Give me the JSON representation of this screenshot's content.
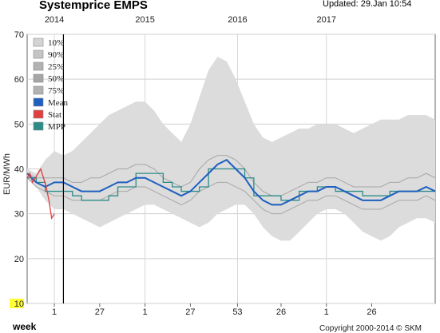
{
  "header": {
    "title": "Systemprice EMPS",
    "updated": "Updated: 29.Jan 10:54"
  },
  "footer": {
    "copyright": "Copyright 2000-2014 © SKM"
  },
  "colors": {
    "band_outer": "#dcdcdc",
    "band_lines": "#a6a6a6",
    "mean": "#1f5fbf",
    "stat": "#e04040",
    "mpp": "#2b8c88",
    "cursor": "#000000",
    "highlight": "#ffff33"
  },
  "chart_data": {
    "type": "line",
    "title": "Systemprice EMPS",
    "ylabel": "EUR/MWh",
    "xlabel": "week",
    "xlim": [
      0,
      4.5
    ],
    "ylim": [
      10,
      70
    ],
    "yticks": [
      "10",
      "20",
      "30",
      "40",
      "50",
      "60",
      "70"
    ],
    "week_ticks": [
      {
        "label": "1",
        "x": 0.3
      },
      {
        "label": "27",
        "x": 0.8
      },
      {
        "label": "1",
        "x": 1.3
      },
      {
        "label": "27",
        "x": 1.8
      },
      {
        "label": "53",
        "x": 2.32
      },
      {
        "label": "26",
        "x": 2.8
      },
      {
        "label": "1",
        "x": 3.3
      },
      {
        "label": "26",
        "x": 3.8
      }
    ],
    "year_ticks": [
      {
        "label": "2014",
        "x": 0.3
      },
      {
        "label": "2015",
        "x": 1.3
      },
      {
        "label": "2016",
        "x": 2.32
      },
      {
        "label": "2017",
        "x": 3.3
      }
    ],
    "cursor_x": 0.4,
    "legend": [
      {
        "label": "10%",
        "swatch": "#d4d4d4"
      },
      {
        "label": "90%",
        "swatch": "#c4c4c4"
      },
      {
        "label": "25%",
        "swatch": "#b2b2b2"
      },
      {
        "label": "50%",
        "swatch": "#a6a6a6"
      },
      {
        "label": "75%",
        "swatch": "#b2b2b2"
      },
      {
        "label": "Mean",
        "swatch": "#1f5fbf"
      },
      {
        "label": "Stat",
        "swatch": "#e04040"
      },
      {
        "label": "MPP",
        "swatch": "#2b8c88"
      }
    ],
    "x": [
      0.0,
      0.1,
      0.2,
      0.3,
      0.4,
      0.5,
      0.6,
      0.7,
      0.8,
      0.9,
      1.0,
      1.1,
      1.2,
      1.3,
      1.4,
      1.5,
      1.6,
      1.7,
      1.8,
      1.9,
      2.0,
      2.1,
      2.2,
      2.3,
      2.4,
      2.5,
      2.6,
      2.7,
      2.8,
      2.9,
      3.0,
      3.1,
      3.2,
      3.3,
      3.4,
      3.5,
      3.6,
      3.7,
      3.8,
      3.9,
      4.0,
      4.1,
      4.2,
      4.3,
      4.4,
      4.5
    ],
    "series": [
      {
        "name": "10%",
        "values": [
          38,
          36,
          33,
          31,
          31,
          30,
          29,
          28,
          27,
          28,
          29,
          30,
          31,
          32,
          32,
          31,
          30,
          29,
          28,
          27,
          28,
          30,
          31,
          32,
          32,
          30,
          27,
          25,
          24,
          24,
          26,
          28,
          30,
          31,
          31,
          30,
          28,
          26,
          25,
          24,
          25,
          27,
          28,
          29,
          29,
          28
        ]
      },
      {
        "name": "90%",
        "values": [
          40,
          39,
          42,
          44,
          43,
          44,
          46,
          48,
          50,
          52,
          53,
          54,
          55,
          55,
          53,
          50,
          48,
          46,
          50,
          56,
          62,
          65,
          64,
          60,
          55,
          50,
          47,
          46,
          47,
          48,
          49,
          49,
          50,
          50,
          50,
          49,
          48,
          49,
          50,
          51,
          51,
          51,
          52,
          52,
          52,
          51
        ]
      },
      {
        "name": "25%",
        "values": [
          38,
          36,
          35,
          34,
          34,
          33,
          33,
          33,
          33,
          34,
          35,
          35,
          36,
          36,
          35,
          34,
          33,
          32,
          33,
          35,
          36,
          37,
          37,
          36,
          35,
          33,
          31,
          30,
          30,
          31,
          32,
          33,
          33,
          34,
          34,
          33,
          32,
          31,
          31,
          31,
          32,
          33,
          33,
          33,
          34,
          33
        ]
      },
      {
        "name": "50%",
        "values": [
          39,
          37,
          37,
          36,
          36,
          35,
          35,
          35,
          35,
          36,
          37,
          37,
          38,
          38,
          37,
          36,
          35,
          34,
          35,
          37,
          39,
          40,
          40,
          39,
          37,
          35,
          33,
          32,
          32,
          33,
          34,
          35,
          35,
          36,
          36,
          35,
          34,
          33,
          33,
          33,
          34,
          35,
          35,
          35,
          36,
          35
        ]
      },
      {
        "name": "75%",
        "values": [
          39,
          38,
          38,
          38,
          38,
          37,
          37,
          38,
          38,
          39,
          40,
          40,
          41,
          41,
          40,
          38,
          37,
          36,
          37,
          40,
          42,
          43,
          43,
          42,
          40,
          37,
          35,
          34,
          34,
          35,
          36,
          37,
          37,
          38,
          38,
          37,
          36,
          36,
          36,
          36,
          37,
          37,
          38,
          38,
          39,
          38
        ]
      },
      {
        "name": "Mean",
        "values": [
          39,
          37,
          36,
          37,
          37,
          36,
          35,
          35,
          35,
          36,
          37,
          37,
          38,
          38,
          37,
          36,
          35,
          34,
          35,
          37,
          39,
          41,
          42,
          40,
          38,
          35,
          33,
          32,
          32,
          33,
          34,
          35,
          35,
          36,
          36,
          35,
          34,
          33,
          33,
          33,
          34,
          35,
          35,
          35,
          36,
          35
        ]
      },
      {
        "name": "MPP",
        "values": [
          38,
          37,
          35,
          35,
          35,
          34,
          33,
          33,
          33,
          34,
          36,
          36,
          39,
          39,
          39,
          37,
          36,
          35,
          35,
          36,
          40,
          40,
          40,
          40,
          38,
          34,
          34,
          34,
          33,
          33,
          35,
          35,
          36,
          36,
          35,
          35,
          35,
          34,
          34,
          34,
          35,
          35,
          35,
          35,
          35,
          35
        ]
      }
    ],
    "stat_series": {
      "name": "Stat",
      "x": [
        0.0,
        0.03,
        0.06,
        0.09,
        0.12,
        0.15,
        0.18,
        0.21,
        0.24,
        0.27,
        0.3
      ],
      "values": [
        38,
        39,
        37,
        38,
        39,
        40,
        38,
        36,
        33,
        29,
        30
      ]
    }
  }
}
